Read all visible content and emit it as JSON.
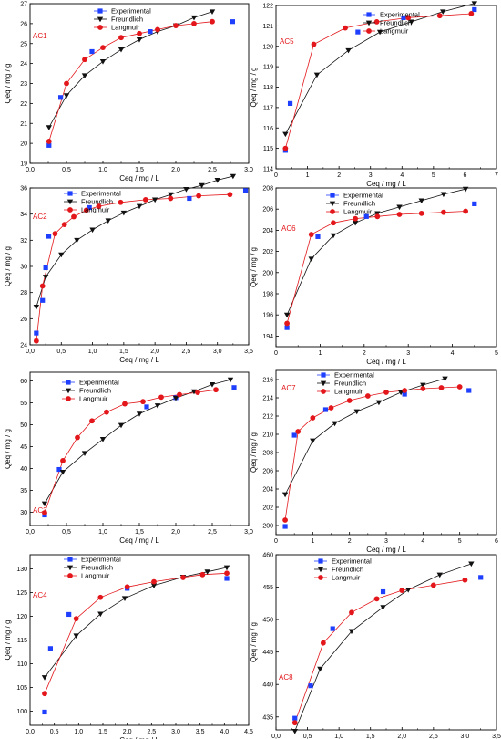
{
  "legend_labels": {
    "experimental": "Experimental",
    "freundlich": "Freundlich",
    "langmuir": "Langmuir"
  },
  "colors": {
    "experimental": "#1f3fff",
    "freundlich": "#111111",
    "langmuir": "#e3171b"
  },
  "chart_data": [
    {
      "type": "scatter",
      "label": "AC1",
      "xlabel": "Ceq / mg / L",
      "ylabel": "Qeq / mg / g",
      "xlim": [
        0,
        3.0
      ],
      "ylim": [
        19,
        27
      ],
      "xticks": [
        "0,0",
        "0,5",
        "1,0",
        "1,5",
        "2,0",
        "2,5",
        "3,0"
      ],
      "yticks": [
        "19",
        "20",
        "21",
        "22",
        "23",
        "24",
        "25",
        "26",
        "27"
      ],
      "series": [
        {
          "name": "Experimental",
          "x": [
            0.26,
            0.42,
            0.85,
            1.65,
            2.78
          ],
          "y": [
            19.9,
            22.3,
            24.6,
            25.6,
            26.1
          ]
        },
        {
          "name": "Freundlich",
          "x": [
            0.26,
            0.5,
            0.75,
            1.0,
            1.25,
            1.5,
            1.75,
            2.0,
            2.25,
            2.5
          ],
          "y": [
            20.8,
            22.4,
            23.4,
            24.1,
            24.7,
            25.2,
            25.6,
            25.9,
            26.3,
            26.6
          ]
        },
        {
          "name": "Langmuir",
          "x": [
            0.26,
            0.5,
            0.75,
            1.0,
            1.25,
            1.5,
            1.75,
            2.0,
            2.25,
            2.5
          ],
          "y": [
            20.1,
            23.0,
            24.2,
            24.8,
            25.3,
            25.5,
            25.7,
            25.9,
            26.0,
            26.1
          ]
        }
      ]
    },
    {
      "type": "scatter",
      "label": "AC5",
      "xlabel": "Ceq / mg / L",
      "ylabel": "Qeq / mg / g",
      "xlim": [
        0,
        7
      ],
      "ylim": [
        114,
        122
      ],
      "xticks": [
        "0",
        "1",
        "2",
        "3",
        "4",
        "5",
        "6",
        "7"
      ],
      "yticks": [
        "114",
        "115",
        "116",
        "117",
        "118",
        "119",
        "120",
        "121",
        "122"
      ],
      "series": [
        {
          "name": "Experimental",
          "x": [
            0.3,
            0.45,
            2.6,
            4.05,
            6.3
          ],
          "y": [
            114.9,
            117.2,
            120.7,
            121.4,
            121.8
          ]
        },
        {
          "name": "Freundlich",
          "x": [
            0.3,
            1.3,
            2.3,
            3.3,
            4.3,
            5.3,
            6.3
          ],
          "y": [
            115.7,
            118.6,
            119.8,
            120.7,
            121.2,
            121.7,
            122.1
          ]
        },
        {
          "name": "Langmuir",
          "x": [
            0.3,
            1.2,
            2.2,
            3.2,
            4.2,
            5.2,
            6.2
          ],
          "y": [
            115.0,
            120.1,
            120.9,
            121.2,
            121.4,
            121.5,
            121.6
          ]
        }
      ]
    },
    {
      "type": "scatter",
      "label": "AC2",
      "xlabel": "Ceq / mg / L",
      "ylabel": "Qeq / mg / g",
      "xlim": [
        0,
        3.5
      ],
      "ylim": [
        24,
        36
      ],
      "xticks": [
        "0,0",
        "0,5",
        "1,0",
        "1,5",
        "2,0",
        "2,5",
        "3,0",
        "3,5"
      ],
      "yticks": [
        "24",
        "26",
        "28",
        "30",
        "32",
        "34",
        "36"
      ],
      "series": [
        {
          "name": "Experimental",
          "x": [
            0.1,
            0.2,
            0.25,
            0.3,
            0.95,
            2.55,
            3.45
          ],
          "y": [
            24.9,
            27.4,
            29.9,
            32.3,
            34.5,
            35.2,
            35.8
          ]
        },
        {
          "name": "Freundlich",
          "x": [
            0.1,
            0.25,
            0.5,
            0.75,
            1.0,
            1.25,
            1.5,
            1.75,
            2.0,
            2.25,
            2.5,
            2.75,
            3.0,
            3.25
          ],
          "y": [
            26.9,
            29.2,
            30.9,
            32.0,
            32.8,
            33.5,
            34.1,
            34.6,
            35.1,
            35.5,
            35.9,
            36.2,
            36.6,
            36.9
          ]
        },
        {
          "name": "Langmuir",
          "x": [
            0.1,
            0.2,
            0.4,
            0.55,
            0.7,
            0.9,
            1.1,
            1.45,
            1.85,
            2.25,
            2.7,
            3.2
          ],
          "y": [
            24.3,
            28.5,
            32.5,
            33.2,
            33.8,
            34.3,
            34.6,
            34.9,
            35.1,
            35.2,
            35.4,
            35.5
          ]
        }
      ]
    },
    {
      "type": "scatter",
      "label": "AC6",
      "xlabel": "Ceq / mg / L",
      "ylabel": "Qeq / mg / g",
      "xlim": [
        0,
        5
      ],
      "ylim": [
        193,
        208
      ],
      "xticks": [
        "0",
        "1",
        "2",
        "3",
        "4",
        "5"
      ],
      "yticks": [
        "194",
        "196",
        "198",
        "200",
        "202",
        "204",
        "206",
        "208"
      ],
      "series": [
        {
          "name": "Experimental",
          "x": [
            0.25,
            0.95,
            2.05,
            4.5
          ],
          "y": [
            194.8,
            203.4,
            205.3,
            206.5
          ]
        },
        {
          "name": "Freundlich",
          "x": [
            0.25,
            0.8,
            1.3,
            1.8,
            2.3,
            2.8,
            3.3,
            3.8,
            4.3
          ],
          "y": [
            196.0,
            201.3,
            203.5,
            204.7,
            205.6,
            206.2,
            206.8,
            207.4,
            207.9
          ]
        },
        {
          "name": "Langmuir",
          "x": [
            0.25,
            0.8,
            1.3,
            1.8,
            2.3,
            2.8,
            3.3,
            3.8,
            4.3
          ],
          "y": [
            195.2,
            203.6,
            204.7,
            205.1,
            205.3,
            205.5,
            205.6,
            205.7,
            205.8
          ]
        }
      ]
    },
    {
      "type": "scatter",
      "label": "AC3",
      "xlabel": "Ceq / mg / L",
      "ylabel": "Qeq / mg / g",
      "xlim": [
        0,
        3.0
      ],
      "ylim": [
        27,
        62
      ],
      "xticks": [
        "0,0",
        "0,5",
        "1,0",
        "1,5",
        "2,0",
        "2,5",
        "3,0"
      ],
      "yticks": [
        "30",
        "35",
        "40",
        "45",
        "50",
        "55",
        "60"
      ],
      "series": [
        {
          "name": "Experimental",
          "x": [
            0.2,
            0.4,
            1.6,
            2.0,
            2.8
          ],
          "y": [
            29.4,
            39.8,
            54.1,
            56.2,
            58.5
          ]
        },
        {
          "name": "Freundlich",
          "x": [
            0.2,
            0.45,
            0.75,
            1.0,
            1.25,
            1.5,
            1.75,
            2.0,
            2.25,
            2.5,
            2.75
          ],
          "y": [
            32.0,
            39.2,
            43.5,
            46.7,
            49.9,
            52.5,
            54.4,
            56.1,
            57.6,
            59.2,
            60.3
          ]
        },
        {
          "name": "Langmuir",
          "x": [
            0.2,
            0.45,
            0.65,
            0.85,
            1.05,
            1.3,
            1.55,
            1.8,
            2.05,
            2.3,
            2.55
          ],
          "y": [
            29.9,
            41.8,
            47.1,
            50.9,
            52.9,
            54.8,
            55.3,
            56.3,
            56.9,
            57.4,
            58.0
          ]
        }
      ]
    },
    {
      "type": "scatter",
      "label": "AC7",
      "xlabel": "Ceq / mg / L",
      "ylabel": "Qeq / mg / g",
      "xlim": [
        0,
        6
      ],
      "ylim": [
        199,
        217
      ],
      "xticks": [
        "0",
        "1",
        "2",
        "3",
        "4",
        "5",
        "6"
      ],
      "yticks": [
        "200",
        "202",
        "204",
        "206",
        "208",
        "210",
        "212",
        "214",
        "216"
      ],
      "series": [
        {
          "name": "Experimental",
          "x": [
            0.25,
            0.5,
            1.35,
            3.5,
            5.25
          ],
          "y": [
            199.9,
            209.9,
            212.7,
            214.4,
            214.8
          ]
        },
        {
          "name": "Freundlich",
          "x": [
            0.25,
            1.0,
            1.6,
            2.2,
            2.8,
            3.4,
            4.0,
            4.6
          ],
          "y": [
            203.4,
            209.3,
            211.2,
            212.5,
            213.5,
            214.6,
            215.4,
            216.1
          ]
        },
        {
          "name": "Langmuir",
          "x": [
            0.25,
            0.6,
            1.0,
            1.5,
            2.0,
            2.5,
            3.0,
            3.5,
            4.0,
            4.5,
            5.0
          ],
          "y": [
            200.6,
            210.3,
            211.8,
            212.9,
            213.7,
            214.2,
            214.6,
            214.8,
            215.0,
            215.1,
            215.2
          ]
        }
      ]
    },
    {
      "type": "scatter",
      "label": "AC4",
      "xlabel": "Ceq / mg / L",
      "ylabel": "Qeq / mg / g",
      "xlim": [
        0,
        4.5
      ],
      "ylim": [
        97,
        133
      ],
      "xticks": [
        "0,0",
        "0,5",
        "1,0",
        "1,5",
        "2,0",
        "2,5",
        "3,0",
        "3,5",
        "4,0",
        "4,5"
      ],
      "yticks": [
        "100",
        "105",
        "110",
        "115",
        "120",
        "125",
        "130"
      ],
      "series": [
        {
          "name": "Experimental",
          "x": [
            0.3,
            0.42,
            0.8,
            2.0,
            4.05
          ],
          "y": [
            99.8,
            113.2,
            120.4,
            125.9,
            128.0
          ]
        },
        {
          "name": "Freundlich",
          "x": [
            0.3,
            0.95,
            1.45,
            1.95,
            2.55,
            3.15,
            3.65,
            4.05
          ],
          "y": [
            107.1,
            115.9,
            120.5,
            123.8,
            126.5,
            128.3,
            129.4,
            130.3
          ]
        },
        {
          "name": "Langmuir",
          "x": [
            0.3,
            0.95,
            1.45,
            2.0,
            2.55,
            3.15,
            3.55,
            4.05
          ],
          "y": [
            103.7,
            119.5,
            124.0,
            126.2,
            127.3,
            128.2,
            128.8,
            129.1
          ]
        }
      ]
    },
    {
      "type": "scatter",
      "label": "AC8",
      "xlabel": "Ceq / mg / L",
      "ylabel": "Qeq / mg / g",
      "xlim": [
        0,
        3.5
      ],
      "ylim": [
        433,
        460
      ],
      "xticks": [
        "0,0",
        "0,5",
        "1,0",
        "1,5",
        "2,0",
        "2,5",
        "3,0",
        "3,5"
      ],
      "yticks": [
        "435",
        "440",
        "445",
        "450",
        "455",
        "460"
      ],
      "series": [
        {
          "name": "Experimental",
          "x": [
            0.3,
            0.55,
            0.9,
            1.7,
            3.25
          ],
          "y": [
            434.8,
            439.8,
            448.6,
            454.3,
            456.5
          ]
        },
        {
          "name": "Freundlich",
          "x": [
            0.3,
            0.7,
            1.2,
            1.7,
            2.1,
            2.6,
            3.1
          ],
          "y": [
            432.8,
            442.4,
            448.2,
            451.9,
            454.6,
            456.9,
            458.6
          ]
        },
        {
          "name": "Langmuir",
          "x": [
            0.3,
            0.75,
            1.2,
            1.6,
            2.0,
            2.5,
            3.0
          ],
          "y": [
            434.1,
            446.4,
            451.1,
            453.2,
            454.5,
            455.3,
            456.1
          ]
        }
      ]
    }
  ]
}
